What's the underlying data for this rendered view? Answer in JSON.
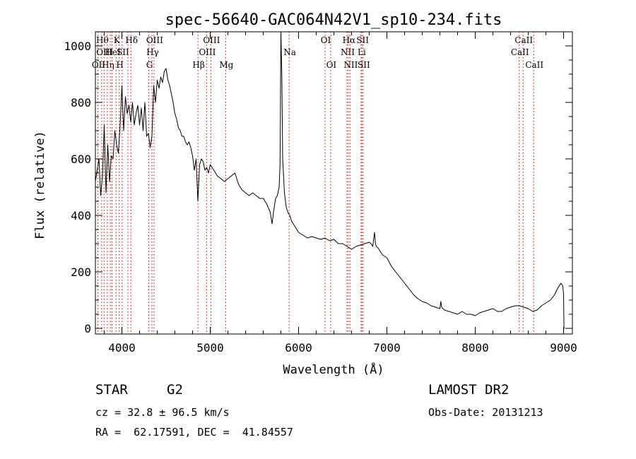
{
  "chart_data": {
    "type": "line",
    "title": "spec-56640-GAC064N42V1_sp10-234.fits",
    "xlabel": "Wavelength (Å)",
    "ylabel": "Flux (relative)",
    "xlim": [
      3700,
      9100
    ],
    "ylim": [
      -20,
      1050
    ],
    "xticks": [
      4000,
      5000,
      6000,
      7000,
      8000,
      9000
    ],
    "yticks": [
      0,
      200,
      400,
      600,
      800,
      1000
    ],
    "grid": false,
    "series": [
      {
        "color": "#000000",
        "x": [
          3700,
          3720,
          3740,
          3760,
          3780,
          3800,
          3820,
          3840,
          3860,
          3880,
          3900,
          3920,
          3940,
          3960,
          3980,
          4000,
          4020,
          4040,
          4060,
          4080,
          4100,
          4120,
          4140,
          4160,
          4180,
          4200,
          4220,
          4240,
          4260,
          4280,
          4300,
          4320,
          4340,
          4360,
          4380,
          4400,
          4420,
          4440,
          4460,
          4480,
          4500,
          4520,
          4540,
          4560,
          4580,
          4600,
          4620,
          4640,
          4660,
          4680,
          4700,
          4720,
          4740,
          4760,
          4780,
          4800,
          4820,
          4840,
          4860,
          4870,
          4880,
          4900,
          4920,
          4940,
          4960,
          4980,
          5000,
          5040,
          5080,
          5120,
          5160,
          5200,
          5240,
          5280,
          5320,
          5360,
          5400,
          5440,
          5480,
          5520,
          5560,
          5600,
          5640,
          5680,
          5700,
          5720,
          5740,
          5760,
          5780,
          5790,
          5800,
          5810,
          5820,
          5840,
          5860,
          5880,
          5900,
          5920,
          5960,
          6000,
          6050,
          6100,
          6150,
          6200,
          6250,
          6300,
          6350,
          6400,
          6450,
          6500,
          6550,
          6600,
          6650,
          6700,
          6750,
          6800,
          6820,
          6840,
          6860,
          6870,
          6880,
          6900,
          6950,
          7000,
          7050,
          7100,
          7150,
          7200,
          7250,
          7300,
          7350,
          7400,
          7450,
          7500,
          7550,
          7600,
          7610,
          7620,
          7650,
          7700,
          7750,
          7800,
          7850,
          7900,
          7950,
          8000,
          8050,
          8100,
          8150,
          8200,
          8250,
          8300,
          8350,
          8400,
          8450,
          8500,
          8550,
          8600,
          8650,
          8700,
          8750,
          8800,
          8850,
          8900,
          8930,
          8950,
          8970,
          8990,
          9000,
          9005,
          9010
        ],
        "y": [
          520,
          560,
          600,
          470,
          540,
          720,
          480,
          650,
          520,
          610,
          600,
          700,
          650,
          620,
          720,
          860,
          700,
          820,
          760,
          790,
          730,
          800,
          720,
          760,
          790,
          720,
          780,
          700,
          800,
          680,
          690,
          640,
          680,
          860,
          800,
          880,
          850,
          890,
          870,
          910,
          920,
          880,
          860,
          830,
          800,
          760,
          740,
          710,
          700,
          680,
          680,
          660,
          650,
          660,
          640,
          610,
          560,
          600,
          450,
          520,
          580,
          600,
          590,
          560,
          570,
          550,
          580,
          560,
          540,
          530,
          520,
          530,
          540,
          550,
          510,
          490,
          480,
          470,
          480,
          470,
          460,
          460,
          440,
          410,
          370,
          420,
          460,
          470,
          500,
          580,
          1050,
          900,
          600,
          480,
          430,
          410,
          400,
          380,
          360,
          340,
          330,
          320,
          325,
          320,
          315,
          320,
          310,
          315,
          300,
          300,
          290,
          280,
          290,
          295,
          300,
          305,
          300,
          290,
          340,
          300,
          290,
          285,
          260,
          250,
          220,
          200,
          180,
          160,
          140,
          120,
          105,
          95,
          90,
          80,
          75,
          70,
          95,
          75,
          65,
          60,
          55,
          50,
          60,
          50,
          50,
          45,
          55,
          60,
          65,
          70,
          60,
          60,
          70,
          75,
          80,
          80,
          75,
          70,
          60,
          65,
          80,
          90,
          100,
          120,
          140,
          150,
          160,
          150,
          120,
          0,
          0
        ]
      }
    ],
    "line_markers": [
      {
        "wavelength": 3728,
        "label": "OII",
        "row": 2
      },
      {
        "wavelength": 3771,
        "label": "Hθ",
        "row": 0
      },
      {
        "wavelength": 3798,
        "label": "OIII",
        "row": 1
      },
      {
        "wavelength": 3835,
        "label": "Hη",
        "row": 2
      },
      {
        "wavelength": 3869,
        "label": "",
        "row": 0
      },
      {
        "wavelength": 3889,
        "label": "HeI",
        "row": 1
      },
      {
        "wavelength": 3934,
        "label": "K",
        "row": 0
      },
      {
        "wavelength": 3969,
        "label": "H",
        "row": 2
      },
      {
        "wavelength": 4003,
        "label": "SII",
        "row": 1
      },
      {
        "wavelength": 4068,
        "label": "",
        "row": 0
      },
      {
        "wavelength": 4102,
        "label": "Hδ",
        "row": 0
      },
      {
        "wavelength": 4304,
        "label": "G",
        "row": 2
      },
      {
        "wavelength": 4340,
        "label": "Hγ",
        "row": 1
      },
      {
        "wavelength": 4363,
        "label": "OIII",
        "row": 0
      },
      {
        "wavelength": 4861,
        "label": "Hβ",
        "row": 2
      },
      {
        "wavelength": 4959,
        "label": "OIII",
        "row": 1
      },
      {
        "wavelength": 5007,
        "label": "OIII",
        "row": 0
      },
      {
        "wavelength": 5175,
        "label": "Mg",
        "row": 2
      },
      {
        "wavelength": 5893,
        "label": "Na",
        "row": 1
      },
      {
        "wavelength": 6300,
        "label": "OI",
        "row": 0
      },
      {
        "wavelength": 6363,
        "label": "OI",
        "row": 2
      },
      {
        "wavelength": 6548,
        "label": "NII",
        "row": 1
      },
      {
        "wavelength": 6563,
        "label": "Hα",
        "row": 0
      },
      {
        "wavelength": 6583,
        "label": "NII",
        "row": 2
      },
      {
        "wavelength": 6707,
        "label": "Li",
        "row": 1
      },
      {
        "wavelength": 6717,
        "label": "SII",
        "row": 0
      },
      {
        "wavelength": 6731,
        "label": "SII",
        "row": 2
      },
      {
        "wavelength": 8498,
        "label": "CaII",
        "row": 1
      },
      {
        "wavelength": 8542,
        "label": "CaII",
        "row": 0
      },
      {
        "wavelength": 8662,
        "label": "CaII",
        "row": 2
      }
    ]
  },
  "info": {
    "class": "STAR",
    "subclass": "G2",
    "survey": "LAMOST DR2",
    "redshift": "cz = 32.8 ± 96.5 km/s",
    "obs_date": "Obs-Date: 20131213",
    "coords": "RA =  62.17591, DEC =  41.84557"
  },
  "colors": {
    "marker_line": "#cc0000",
    "spectrum": "#000000"
  }
}
